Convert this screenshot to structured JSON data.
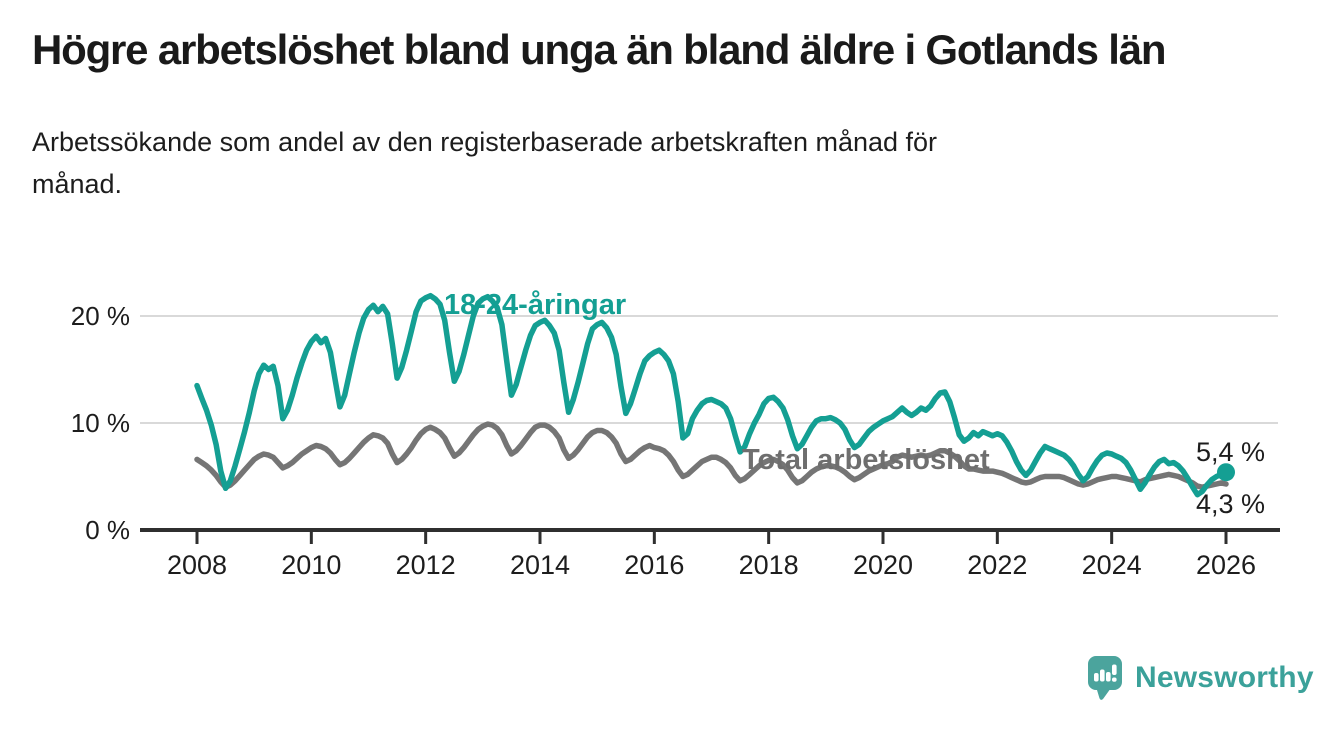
{
  "header": {
    "title": "Högre arbetslöshet bland unga än bland äldre i Gotlands län",
    "subtitle": "Arbetssökande som andel av den registerbaserade arbetskraften månad för månad."
  },
  "colors": {
    "accent_teal": "#149f93",
    "line_gray": "#757575",
    "label_gray": "#6e6e6e",
    "axis": "#2f2f2f",
    "grid": "#d9d9d9",
    "text_dark": "#1d1d1d",
    "logo_teal": "#3ba19a",
    "logo_icon_teal": "#4ba49d"
  },
  "footer": {
    "brand": "Newsworthy"
  },
  "chart_data": {
    "type": "line",
    "title": "Högre arbetslöshet bland unga än bland äldre i Gotlands län",
    "subtitle": "Arbetssökande som andel av den registerbaserade arbetskraften månad för månad.",
    "x_start": "2008-01",
    "x_end": "2026-01",
    "x_interval": "monthly",
    "x_ticks": [
      "2008",
      "2010",
      "2012",
      "2014",
      "2016",
      "2018",
      "2020",
      "2022",
      "2024",
      "2026"
    ],
    "y_ticks": [
      {
        "value": 0,
        "label": "0 %"
      },
      {
        "value": 10,
        "label": "10 %"
      },
      {
        "value": 20,
        "label": "20 %"
      }
    ],
    "ylim": [
      0,
      22.4
    ],
    "grid": "horizontal-only",
    "legend": "inline-labels",
    "series": [
      {
        "name": "18-24-åringar",
        "color": "#149f93",
        "end_value": 5.4,
        "end_label": "5,4 %",
        "marker_end": true,
        "values": [
          13.5,
          12.3,
          11.2,
          9.8,
          8.0,
          5.5,
          3.9,
          4.6,
          6.0,
          7.6,
          9.2,
          11.0,
          13.0,
          14.6,
          15.4,
          15.0,
          15.3,
          13.5,
          10.4,
          11.2,
          12.6,
          14.2,
          15.6,
          16.8,
          17.6,
          18.1,
          17.5,
          17.9,
          16.6,
          14.0,
          11.5,
          12.6,
          14.6,
          16.6,
          18.4,
          19.8,
          20.6,
          21.0,
          20.4,
          20.9,
          20.2,
          17.4,
          14.2,
          15.2,
          16.8,
          18.6,
          20.4,
          21.4,
          21.7,
          21.9,
          21.6,
          21.1,
          19.6,
          16.6,
          13.9,
          14.8,
          16.4,
          18.2,
          20.0,
          21.2,
          21.6,
          21.8,
          21.4,
          20.8,
          19.2,
          15.8,
          12.6,
          13.6,
          15.2,
          16.8,
          18.2,
          19.1,
          19.4,
          19.6,
          19.1,
          18.4,
          16.8,
          13.8,
          11.0,
          12.2,
          13.8,
          15.6,
          17.4,
          18.8,
          19.2,
          19.4,
          18.9,
          18.0,
          16.4,
          13.4,
          10.9,
          11.8,
          13.2,
          14.6,
          15.8,
          16.3,
          16.6,
          16.8,
          16.4,
          15.8,
          14.6,
          12.0,
          8.6,
          9.0,
          10.4,
          11.2,
          11.8,
          12.1,
          12.2,
          12.0,
          11.8,
          11.4,
          10.4,
          8.8,
          7.3,
          7.8,
          9.0,
          10.0,
          10.8,
          11.8,
          12.3,
          12.4,
          12.0,
          11.4,
          10.3,
          8.8,
          7.6,
          8.0,
          8.8,
          9.6,
          10.2,
          10.4,
          10.4,
          10.5,
          10.3,
          10.0,
          9.4,
          8.4,
          7.7,
          8.0,
          8.6,
          9.2,
          9.6,
          9.9,
          10.2,
          10.4,
          10.6,
          11.0,
          11.4,
          11.0,
          10.7,
          11.0,
          11.4,
          11.2,
          11.6,
          12.3,
          12.8,
          12.9,
          12.0,
          10.5,
          8.9,
          8.3,
          8.6,
          9.1,
          8.8,
          9.2,
          9.0,
          8.8,
          9.0,
          8.8,
          8.2,
          7.4,
          6.4,
          5.6,
          5.1,
          5.6,
          6.4,
          7.2,
          7.8,
          7.6,
          7.4,
          7.2,
          7.0,
          6.6,
          6.0,
          5.2,
          4.6,
          5.0,
          5.8,
          6.5,
          7.0,
          7.2,
          7.1,
          6.9,
          6.7,
          6.3,
          5.6,
          4.7,
          3.8,
          4.4,
          5.2,
          5.9,
          6.4,
          6.6,
          6.2,
          6.3,
          6.0,
          5.5,
          4.8,
          4.0,
          3.3,
          3.6,
          4.2,
          4.7,
          5.0,
          5.2,
          5.4
        ]
      },
      {
        "name": "Total arbetslöshet",
        "color": "#757575",
        "end_value": 4.3,
        "end_label": "4,3 %",
        "marker_end": false,
        "values": [
          6.6,
          6.3,
          6.0,
          5.6,
          5.1,
          4.5,
          4.0,
          4.2,
          4.6,
          5.1,
          5.6,
          6.1,
          6.6,
          6.9,
          7.1,
          7.0,
          6.8,
          6.3,
          5.8,
          6.0,
          6.3,
          6.7,
          7.1,
          7.4,
          7.7,
          7.9,
          7.8,
          7.6,
          7.2,
          6.6,
          6.1,
          6.3,
          6.7,
          7.2,
          7.7,
          8.2,
          8.6,
          8.9,
          8.8,
          8.6,
          8.1,
          7.1,
          6.3,
          6.6,
          7.1,
          7.7,
          8.4,
          9.0,
          9.4,
          9.6,
          9.4,
          9.1,
          8.6,
          7.7,
          6.9,
          7.2,
          7.7,
          8.3,
          8.9,
          9.4,
          9.7,
          9.9,
          9.8,
          9.5,
          8.9,
          7.9,
          7.1,
          7.4,
          7.9,
          8.5,
          9.1,
          9.6,
          9.8,
          9.8,
          9.6,
          9.2,
          8.6,
          7.5,
          6.7,
          7.0,
          7.5,
          8.1,
          8.7,
          9.1,
          9.3,
          9.3,
          9.1,
          8.7,
          8.1,
          7.1,
          6.4,
          6.6,
          7.0,
          7.4,
          7.7,
          7.9,
          7.7,
          7.6,
          7.4,
          7.0,
          6.4,
          5.6,
          5.0,
          5.2,
          5.6,
          6.0,
          6.4,
          6.6,
          6.8,
          6.8,
          6.6,
          6.3,
          5.8,
          5.1,
          4.6,
          4.8,
          5.2,
          5.6,
          6.0,
          6.3,
          6.5,
          6.6,
          6.4,
          6.1,
          5.6,
          4.9,
          4.4,
          4.6,
          5.0,
          5.4,
          5.7,
          5.9,
          6.0,
          6.0,
          5.9,
          5.7,
          5.4,
          5.0,
          4.7,
          4.9,
          5.2,
          5.5,
          5.7,
          5.9,
          6.1,
          6.2,
          6.4,
          6.8,
          7.0,
          6.9,
          6.8,
          6.9,
          7.0,
          6.9,
          7.0,
          7.2,
          7.4,
          7.4,
          7.2,
          6.9,
          6.5,
          6.0,
          5.7,
          5.7,
          5.6,
          5.5,
          5.5,
          5.5,
          5.4,
          5.3,
          5.1,
          4.9,
          4.7,
          4.5,
          4.4,
          4.5,
          4.7,
          4.9,
          5.0,
          5.0,
          5.0,
          5.0,
          4.9,
          4.7,
          4.5,
          4.3,
          4.2,
          4.3,
          4.5,
          4.7,
          4.8,
          4.9,
          5.0,
          5.0,
          4.9,
          4.8,
          4.7,
          4.6,
          4.5,
          4.7,
          4.8,
          4.9,
          5.0,
          5.1,
          5.2,
          5.1,
          5.0,
          4.8,
          4.6,
          4.4,
          4.1,
          4.0,
          4.1,
          4.2,
          4.3,
          4.4,
          4.3
        ]
      }
    ]
  }
}
